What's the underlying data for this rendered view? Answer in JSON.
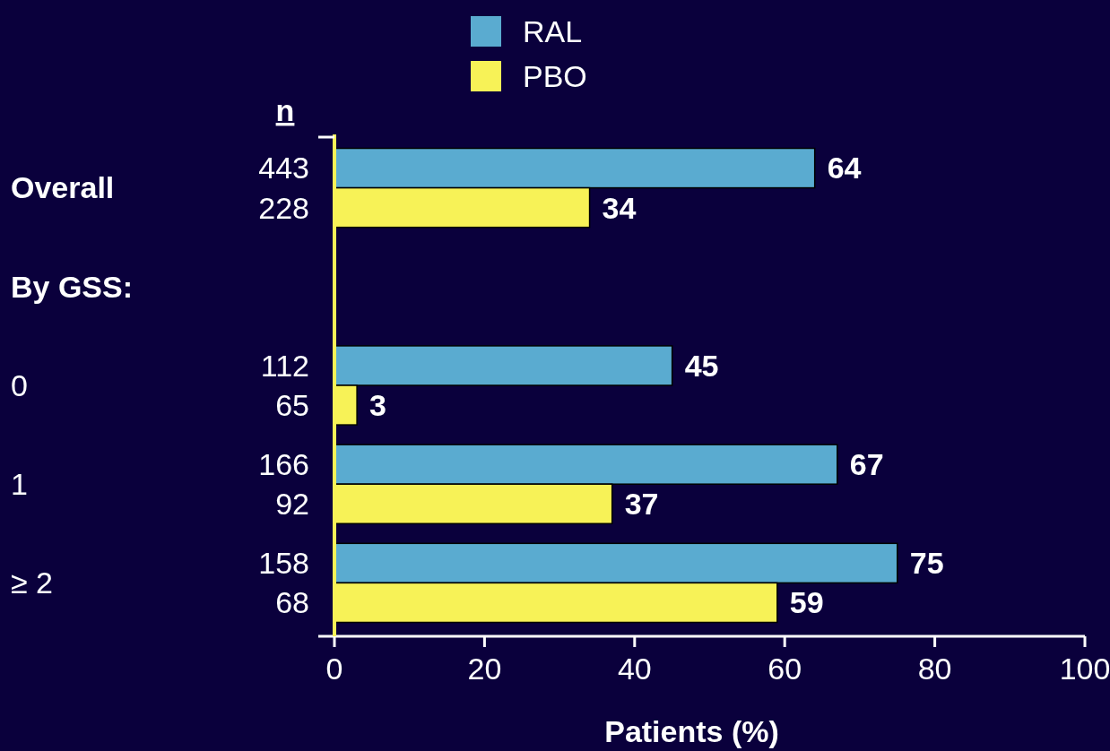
{
  "chart_data": {
    "type": "bar",
    "orientation": "horizontal",
    "xlabel": "Patients (%)",
    "categories": [
      "Overall",
      null,
      "0",
      "1",
      "≥ 2"
    ],
    "series": [
      {
        "name": "RAL",
        "color": "#5aabd0",
        "values": [
          64,
          null,
          45,
          67,
          75
        ]
      },
      {
        "name": "PBO",
        "color": "#f7f257",
        "values": [
          34,
          null,
          3,
          37,
          59
        ]
      }
    ],
    "xlim": [
      0,
      100
    ],
    "xticks": [
      0,
      20,
      40,
      60,
      80,
      100
    ],
    "data_labels": true,
    "legend": "top",
    "grid": false,
    "annotations": [
      "n",
      "By GSS:",
      "443",
      "228",
      "112",
      "65",
      "166",
      "92",
      "158",
      "68"
    ]
  }
}
